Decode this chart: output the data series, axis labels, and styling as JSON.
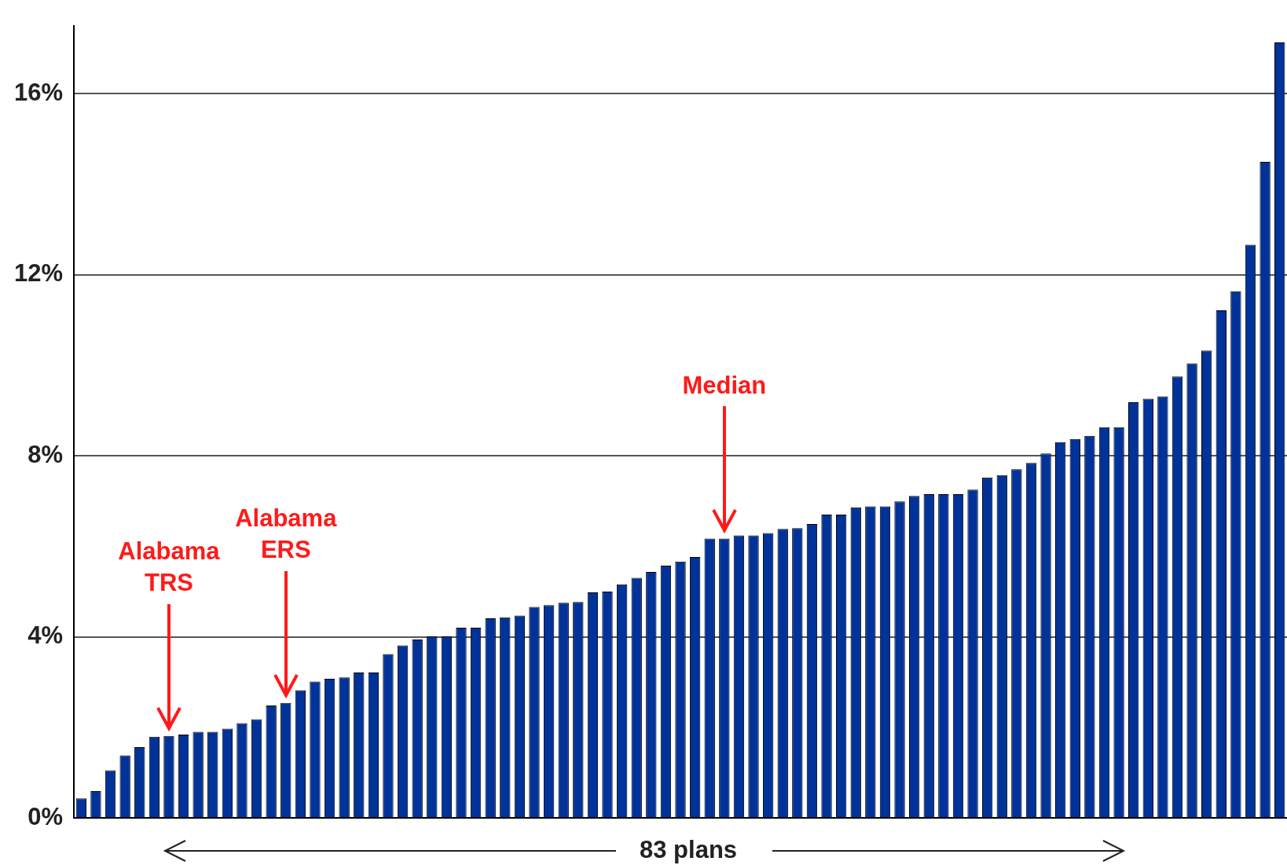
{
  "chart_data": {
    "type": "bar",
    "xlabel": "83 plans",
    "categories": [
      null,
      null,
      null,
      null,
      null,
      null,
      null,
      null,
      null,
      null,
      null,
      null,
      null,
      null,
      null,
      null,
      null,
      null,
      null,
      null,
      null,
      null,
      null,
      null,
      null,
      null,
      null,
      null,
      null,
      null,
      null,
      null,
      null,
      null,
      null,
      null,
      null,
      null,
      null,
      null,
      null,
      null,
      null,
      null,
      null,
      null,
      null,
      null,
      null,
      null,
      null,
      null,
      null,
      null,
      null,
      null,
      null,
      null,
      null,
      null,
      null,
      null,
      null,
      null,
      null,
      null,
      null,
      null,
      null,
      null,
      null,
      null,
      null,
      null,
      null,
      null,
      null,
      null,
      null,
      null,
      null,
      null,
      null
    ],
    "values": [
      0.43,
      0.59,
      1.05,
      1.38,
      1.56,
      1.79,
      1.81,
      1.84,
      1.9,
      1.9,
      1.97,
      2.09,
      2.18,
      2.48,
      2.54,
      2.82,
      3.01,
      3.07,
      3.1,
      3.21,
      3.21,
      3.62,
      3.81,
      3.94,
      4.01,
      4.01,
      4.2,
      4.2,
      4.41,
      4.43,
      4.47,
      4.66,
      4.7,
      4.75,
      4.77,
      4.98,
      5.0,
      5.16,
      5.3,
      5.43,
      5.57,
      5.66,
      5.76,
      6.17,
      6.17,
      6.24,
      6.24,
      6.29,
      6.38,
      6.4,
      6.49,
      6.7,
      6.7,
      6.86,
      6.88,
      6.88,
      6.99,
      7.11,
      7.15,
      7.15,
      7.15,
      7.25,
      7.52,
      7.57,
      7.7,
      7.84,
      8.05,
      8.3,
      8.37,
      8.44,
      8.63,
      8.63,
      9.18,
      9.26,
      9.31,
      9.75,
      10.04,
      10.32,
      11.21,
      11.63,
      12.66,
      14.49,
      17.13
    ],
    "color": "#003399",
    "ylim": [
      0,
      17.5
    ],
    "yticks": [
      {
        "value": 0,
        "label": "0%"
      },
      {
        "value": 4,
        "label": "4%"
      },
      {
        "value": 8,
        "label": "8%"
      },
      {
        "value": 12,
        "label": "12%"
      },
      {
        "value": 16,
        "label": "16%"
      }
    ],
    "grid": "y",
    "annotations": [
      "Alabama\nTRS",
      "Alabama\nERS",
      "Median"
    ]
  }
}
